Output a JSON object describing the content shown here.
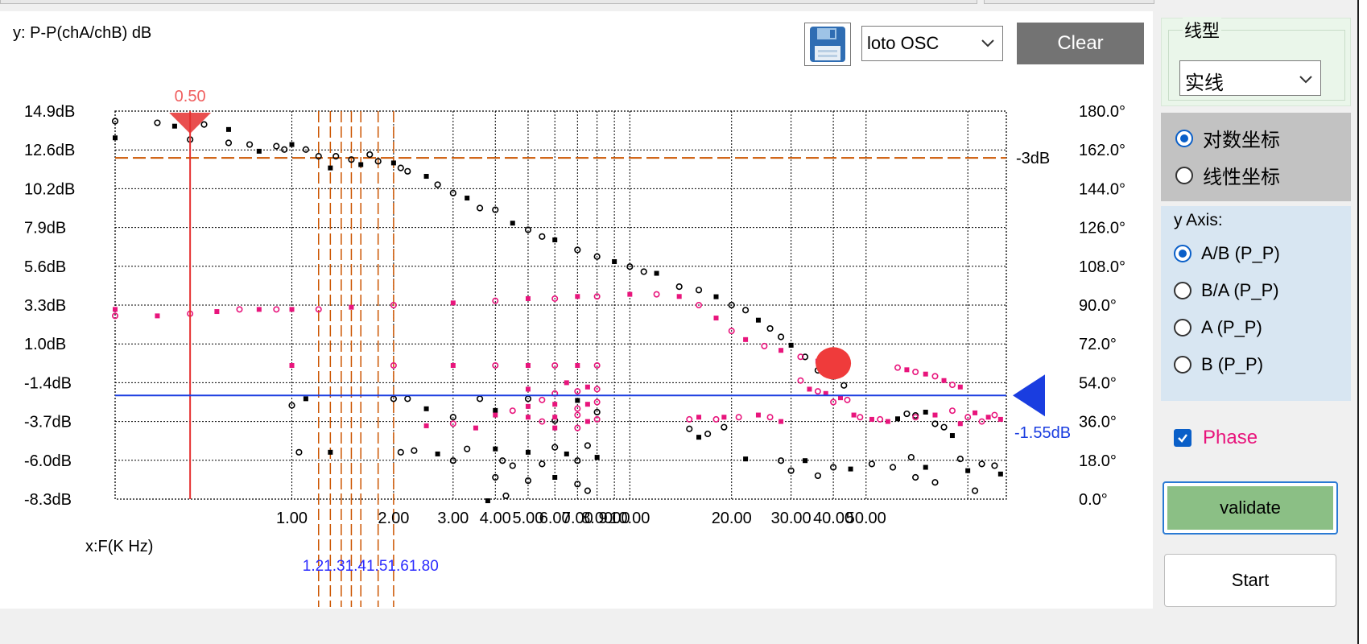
{
  "plot": {
    "y_title": "y: P-P(chA/chB) dB",
    "x_title": "x:F(K Hz)",
    "osc_select": "loto OSC",
    "clear_label": "Clear",
    "marker_label": "0.50",
    "ref_line_label": "-3dB",
    "cursor_label": "-1.55dB",
    "cluster_label": "1.21.31.41.51.61.80",
    "colors": {
      "ref": "#cc5500",
      "cursor": "#1a3de0",
      "marker": "#e53030",
      "magnitude": "#000000",
      "phase": "#e8157c",
      "blob": "#ef3b3b"
    }
  },
  "chart_data": {
    "type": "scatter",
    "xscale": "log",
    "xlim": [
      0.3,
      130
    ],
    "ylim": [
      -8.3,
      14.9
    ],
    "y2lim": [
      0,
      180
    ],
    "grid": true,
    "yticks": [
      "14.9dB",
      "12.6dB",
      "10.2dB",
      "7.9dB",
      "5.6dB",
      "3.3dB",
      "1.0dB",
      "-1.4dB",
      "-3.7dB",
      "-6.0dB",
      "-8.3dB"
    ],
    "y2ticks": [
      "180.0°",
      "162.0°",
      "144.0°",
      "126.0°",
      "108.0°",
      "90.0°",
      "72.0°",
      "54.0°",
      "36.0°",
      "18.0°",
      "0.0°"
    ],
    "xticks": [
      "1.00",
      "2.00",
      "3.00",
      "4.00",
      "5.00",
      "6.00",
      "7.00",
      "8.00",
      "9.00",
      "10.00",
      "20.00",
      "30.00",
      "40.00",
      "50.00"
    ],
    "reference_y": 12.1,
    "cursor_y": -2.1,
    "marker_x": 0.5,
    "cluster_x": [
      1.2,
      1.3,
      1.4,
      1.5,
      1.6,
      1.8,
      2.0
    ],
    "series": [
      {
        "name": "magnitude",
        "points": [
          [
            0.3,
            13.3
          ],
          [
            0.3,
            14.3
          ],
          [
            0.4,
            14.2
          ],
          [
            0.45,
            14.0
          ],
          [
            0.5,
            13.2
          ],
          [
            0.55,
            14.1
          ],
          [
            0.65,
            13.8
          ],
          [
            0.65,
            13.0
          ],
          [
            0.75,
            12.9
          ],
          [
            0.8,
            12.5
          ],
          [
            0.9,
            12.8
          ],
          [
            0.95,
            12.6
          ],
          [
            1.0,
            12.9
          ],
          [
            1.1,
            12.6
          ],
          [
            1.2,
            12.2
          ],
          [
            1.3,
            11.5
          ],
          [
            1.35,
            12.2
          ],
          [
            1.5,
            12.0
          ],
          [
            1.6,
            11.7
          ],
          [
            1.7,
            12.3
          ],
          [
            1.8,
            11.9
          ],
          [
            2.0,
            11.8
          ],
          [
            2.1,
            11.5
          ],
          [
            2.2,
            11.3
          ],
          [
            2.5,
            11.0
          ],
          [
            2.7,
            10.5
          ],
          [
            3.0,
            10.0
          ],
          [
            3.3,
            9.7
          ],
          [
            3.6,
            9.1
          ],
          [
            4.0,
            9.0
          ],
          [
            4.5,
            8.2
          ],
          [
            5.0,
            7.8
          ],
          [
            5.5,
            7.4
          ],
          [
            6.0,
            7.2
          ],
          [
            7.0,
            6.6
          ],
          [
            8.0,
            6.2
          ],
          [
            9.0,
            5.9
          ],
          [
            10.0,
            5.6
          ],
          [
            11.0,
            5.3
          ],
          [
            12.0,
            5.2
          ],
          [
            14.0,
            4.4
          ],
          [
            16.0,
            4.2
          ],
          [
            18.0,
            3.8
          ],
          [
            20.0,
            3.3
          ],
          [
            22.0,
            3.0
          ],
          [
            24.0,
            2.4
          ],
          [
            26.0,
            1.9
          ],
          [
            28.0,
            1.4
          ],
          [
            30.0,
            0.9
          ],
          [
            33.0,
            0.2
          ],
          [
            36.0,
            -0.6
          ],
          [
            40.0,
            -1.0
          ],
          [
            43.0,
            -1.5
          ],
          [
            1.0,
            -2.7
          ],
          [
            1.1,
            -2.3
          ],
          [
            2.0,
            -2.3
          ],
          [
            2.2,
            -2.3
          ],
          [
            2.5,
            -2.9
          ],
          [
            3.0,
            -3.4
          ],
          [
            3.6,
            -2.3
          ],
          [
            4.0,
            -3.0
          ],
          [
            5.0,
            -2.3
          ],
          [
            6.0,
            -3.6
          ],
          [
            7.0,
            -2.4
          ],
          [
            8.0,
            -3.1
          ],
          [
            1.05,
            -5.5
          ],
          [
            1.3,
            -5.5
          ],
          [
            2.1,
            -5.5
          ],
          [
            2.3,
            -5.4
          ],
          [
            2.7,
            -5.6
          ],
          [
            3.0,
            -6.0
          ],
          [
            3.3,
            -5.3
          ],
          [
            4.0,
            -5.3
          ],
          [
            4.2,
            -6.0
          ],
          [
            4.5,
            -6.3
          ],
          [
            5.0,
            -5.5
          ],
          [
            5.5,
            -6.2
          ],
          [
            6.0,
            -5.2
          ],
          [
            6.5,
            -5.6
          ],
          [
            7.0,
            -6.0
          ],
          [
            7.5,
            -5.1
          ],
          [
            8.0,
            -5.8
          ],
          [
            4.0,
            -7.0
          ],
          [
            5.0,
            -7.2
          ],
          [
            6.0,
            -7.0
          ],
          [
            7.0,
            -7.4
          ],
          [
            7.5,
            -7.8
          ],
          [
            3.8,
            -8.4
          ],
          [
            4.3,
            -8.1
          ],
          [
            15.0,
            -4.1
          ],
          [
            16.0,
            -4.6
          ],
          [
            17.0,
            -4.4
          ],
          [
            19.0,
            -4.0
          ],
          [
            22.0,
            -5.9
          ],
          [
            28.0,
            -6.0
          ],
          [
            30.0,
            -6.6
          ],
          [
            33.0,
            -6.0
          ],
          [
            36.0,
            -6.9
          ],
          [
            40.0,
            -6.4
          ],
          [
            45.0,
            -6.5
          ],
          [
            52.0,
            -6.2
          ],
          [
            60.0,
            -6.4
          ],
          [
            62.0,
            -3.5
          ],
          [
            66.0,
            -3.2
          ],
          [
            70.0,
            -3.3
          ],
          [
            75.0,
            -3.1
          ],
          [
            80.0,
            -3.8
          ],
          [
            85.0,
            -4.0
          ],
          [
            90.0,
            -4.5
          ],
          [
            68.0,
            -5.8
          ],
          [
            70.0,
            -7.0
          ],
          [
            75.0,
            -6.4
          ],
          [
            80.0,
            -7.3
          ],
          [
            95.0,
            -5.9
          ],
          [
            100.0,
            -6.6
          ],
          [
            110.0,
            -6.2
          ],
          [
            120.0,
            -6.3
          ],
          [
            125.0,
            -6.8
          ],
          [
            105.0,
            -7.8
          ]
        ]
      },
      {
        "name": "phase",
        "points": [
          [
            0.3,
            88
          ],
          [
            0.3,
            85
          ],
          [
            0.4,
            85
          ],
          [
            0.5,
            86
          ],
          [
            0.6,
            87
          ],
          [
            0.7,
            88
          ],
          [
            0.8,
            88
          ],
          [
            0.9,
            88
          ],
          [
            1.0,
            88
          ],
          [
            1.2,
            88
          ],
          [
            1.5,
            89
          ],
          [
            2.0,
            90
          ],
          [
            3.0,
            91
          ],
          [
            4.0,
            92
          ],
          [
            5.0,
            93
          ],
          [
            6.0,
            93
          ],
          [
            7.0,
            94
          ],
          [
            8.0,
            94
          ],
          [
            10.0,
            95
          ],
          [
            12.0,
            95
          ],
          [
            14.0,
            94
          ],
          [
            16.0,
            90
          ],
          [
            18.0,
            84
          ],
          [
            20.0,
            78
          ],
          [
            22.0,
            74
          ],
          [
            25.0,
            71
          ],
          [
            28.0,
            69
          ],
          [
            32.0,
            66
          ],
          [
            36.0,
            64
          ],
          [
            40.0,
            63
          ],
          [
            1.0,
            62
          ],
          [
            2.0,
            62
          ],
          [
            3.0,
            62
          ],
          [
            4.0,
            62
          ],
          [
            5.0,
            62
          ],
          [
            6.0,
            62
          ],
          [
            7.0,
            62
          ],
          [
            8.0,
            62
          ],
          [
            5.0,
            51
          ],
          [
            6.0,
            49
          ],
          [
            6.5,
            54
          ],
          [
            7.0,
            50
          ],
          [
            7.5,
            52
          ],
          [
            8.0,
            51
          ],
          [
            5.0,
            43
          ],
          [
            5.5,
            46
          ],
          [
            6.0,
            44
          ],
          [
            7.0,
            42
          ],
          [
            7.5,
            44
          ],
          [
            8.0,
            45
          ],
          [
            4.0,
            39
          ],
          [
            4.5,
            41
          ],
          [
            5.0,
            38
          ],
          [
            5.5,
            36
          ],
          [
            6.0,
            38
          ],
          [
            7.0,
            39
          ],
          [
            7.5,
            36
          ],
          [
            8.0,
            37
          ],
          [
            6.0,
            33
          ],
          [
            7.0,
            33
          ],
          [
            2.5,
            34
          ],
          [
            3.0,
            35
          ],
          [
            3.5,
            33
          ],
          [
            15.0,
            37
          ],
          [
            16.0,
            38
          ],
          [
            18.0,
            37
          ],
          [
            19.0,
            38
          ],
          [
            21.0,
            38
          ],
          [
            24.0,
            39
          ],
          [
            26.0,
            38
          ],
          [
            28.0,
            36
          ],
          [
            32.0,
            55
          ],
          [
            34.0,
            51
          ],
          [
            36.0,
            50
          ],
          [
            38.0,
            49
          ],
          [
            40.0,
            45
          ],
          [
            42.0,
            47
          ],
          [
            44.0,
            46
          ],
          [
            46.0,
            39
          ],
          [
            48.0,
            38
          ],
          [
            52.0,
            37
          ],
          [
            55.0,
            37
          ],
          [
            58.0,
            36
          ],
          [
            62.0,
            61
          ],
          [
            66.0,
            60
          ],
          [
            70.0,
            59
          ],
          [
            75.0,
            58
          ],
          [
            80.0,
            57
          ],
          [
            85.0,
            55
          ],
          [
            90.0,
            53
          ],
          [
            95.0,
            52
          ],
          [
            70.0,
            38
          ],
          [
            80.0,
            39
          ],
          [
            90.0,
            41
          ],
          [
            95.0,
            35
          ],
          [
            100.0,
            38
          ],
          [
            105.0,
            40
          ],
          [
            110.0,
            36
          ],
          [
            115.0,
            38
          ],
          [
            120.0,
            39
          ],
          [
            125.0,
            37
          ]
        ]
      }
    ]
  },
  "side": {
    "line_type_title": "线型",
    "line_type_value": "实线",
    "coord_options": [
      {
        "label": "对数坐标",
        "selected": true
      },
      {
        "label": "线性坐标",
        "selected": false
      }
    ],
    "y_axis_title": "y Axis:",
    "y_axis_options": [
      {
        "label": "A/B (P_P)",
        "selected": true
      },
      {
        "label": "B/A (P_P)",
        "selected": false
      },
      {
        "label": "A (P_P)",
        "selected": false
      },
      {
        "label": "B (P_P)",
        "selected": false
      }
    ],
    "phase_label": "Phase",
    "phase_checked": true,
    "validate_label": "validate",
    "start_label": "Start"
  }
}
